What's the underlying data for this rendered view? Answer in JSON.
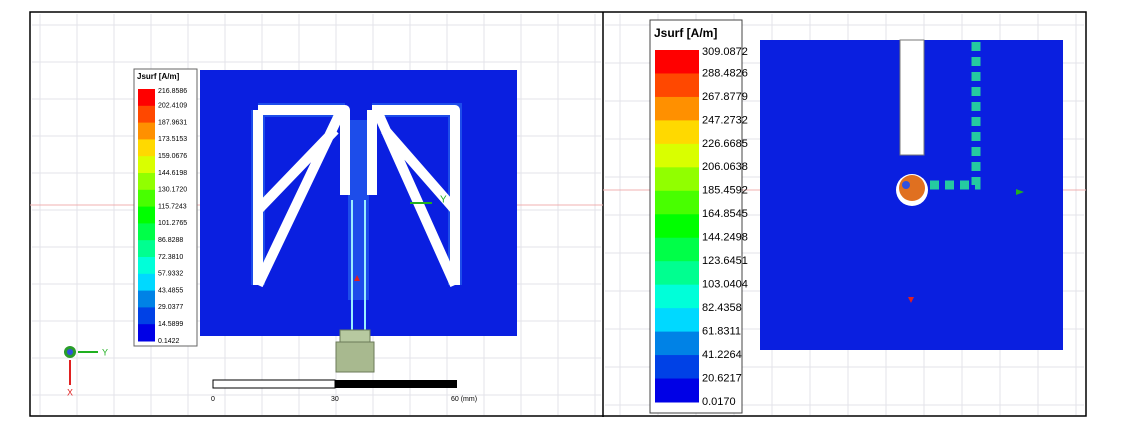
{
  "left_panel": {
    "legend": {
      "title": "Jsurf [A/m]",
      "values": [
        "216.8586",
        "202.4109",
        "187.9631",
        "173.5153",
        "159.0676",
        "144.6198",
        "130.1720",
        "115.7243",
        "101.2765",
        "86.8288",
        "72.3810",
        "57.9332",
        "43.4855",
        "29.0377",
        "14.5899",
        "0.1422"
      ]
    },
    "scale_bar": {
      "labels": [
        "0",
        "30",
        "60 (mm)"
      ]
    },
    "axes": {
      "y": "Y",
      "x": "X",
      "marker_y": "Y"
    }
  },
  "right_panel": {
    "legend": {
      "title": "Jsurf [A/m]",
      "values": [
        "309.0872",
        "288.4826",
        "267.8779",
        "247.2732",
        "226.6685",
        "206.0638",
        "185.4592",
        "164.8545",
        "144.2498",
        "123.6451",
        "103.0404",
        "82.4358",
        "61.8311",
        "41.2264",
        "20.6217",
        "0.0170"
      ]
    }
  }
}
